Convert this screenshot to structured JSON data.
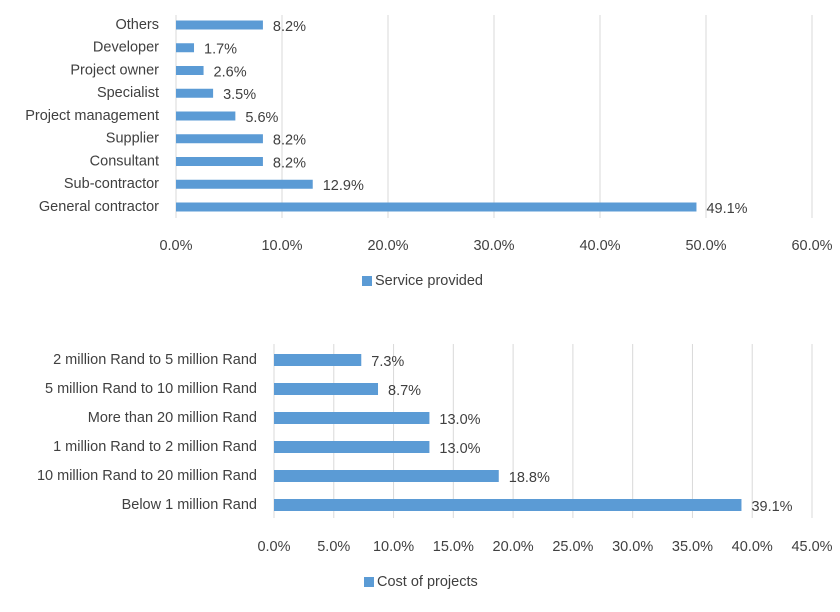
{
  "chart_data": [
    {
      "type": "bar",
      "orientation": "horizontal",
      "categories": [
        "Others",
        "Developer",
        "Project owner",
        "Specialist",
        "Project management",
        "Supplier",
        "Consultant",
        "Sub-contractor",
        "General contractor"
      ],
      "series": [
        {
          "name": "Service provided",
          "values": [
            8.2,
            1.7,
            2.6,
            3.5,
            5.6,
            8.2,
            8.2,
            12.9,
            49.1
          ],
          "data_labels": [
            "8.2%",
            "1.7%",
            "2.6%",
            "3.5%",
            "5.6%",
            "8.2%",
            "8.2%",
            "12.9%",
            "49.1%"
          ]
        }
      ],
      "xlim": [
        0,
        60
      ],
      "ticks": [
        0,
        10,
        20,
        30,
        40,
        50,
        60
      ],
      "tick_labels": [
        "0.0%",
        "10.0%",
        "20.0%",
        "30.0%",
        "40.0%",
        "50.0%",
        "60.0%"
      ],
      "grid": true,
      "legend": "bottom",
      "color": "#5b9bd5"
    },
    {
      "type": "bar",
      "orientation": "horizontal",
      "categories": [
        "2 million Rand to 5 million Rand",
        "5 million Rand to 10 million Rand",
        "More than 20 million Rand",
        "1 million Rand to 2 million Rand",
        "10 million Rand to 20 million Rand",
        "Below  1 million Rand"
      ],
      "series": [
        {
          "name": "Cost of projects",
          "values": [
            7.3,
            8.7,
            13.0,
            13.0,
            18.8,
            39.1
          ],
          "data_labels": [
            "7.3%",
            "8.7%",
            "13.0%",
            "13.0%",
            "18.8%",
            "39.1%"
          ]
        }
      ],
      "xlim": [
        0,
        45
      ],
      "ticks": [
        0,
        5,
        10,
        15,
        20,
        25,
        30,
        35,
        40,
        45
      ],
      "tick_labels": [
        "0.0%",
        "5.0%",
        "10.0%",
        "15.0%",
        "20.0%",
        "25.0%",
        "30.0%",
        "35.0%",
        "40.0%",
        "45.0%"
      ],
      "grid": true,
      "legend": "bottom",
      "color": "#5b9bd5"
    }
  ]
}
